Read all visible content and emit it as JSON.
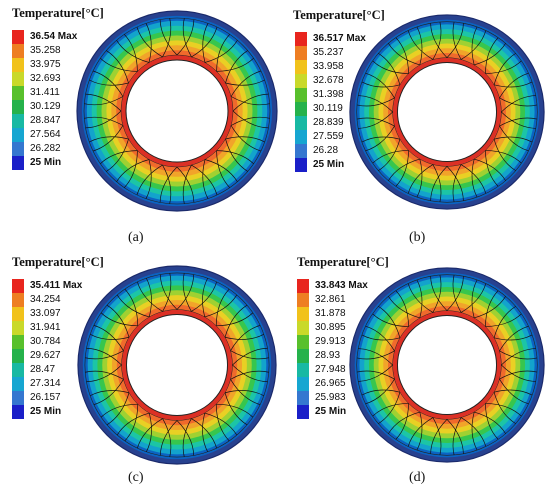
{
  "ring_colors": [
    "#27418f",
    "#0b63c2",
    "#13a3cc",
    "#1cc5a6",
    "#37c64d",
    "#9fd132",
    "#e9d024",
    "#f1a42a",
    "#f06a2c",
    "#dc3025"
  ],
  "panels": [
    {
      "title": "Temperature[°C]",
      "caption": "(a)",
      "legend": [
        "36.54 Max",
        "35.258",
        "33.975",
        "32.693",
        "31.411",
        "30.129",
        "28.847",
        "27.564",
        "26.282",
        "25 Min"
      ]
    },
    {
      "title": "Temperature[°C]",
      "caption": "(b)",
      "legend": [
        "36.517 Max",
        "35.237",
        "33.958",
        "32.678",
        "31.398",
        "30.119",
        "28.839",
        "27.559",
        "26.28",
        "25 Min"
      ]
    },
    {
      "title": "Temperature[°C]",
      "caption": "(c)",
      "legend": [
        "35.411 Max",
        "34.254",
        "33.097",
        "31.941",
        "30.784",
        "29.627",
        "28.47",
        "27.314",
        "26.157",
        "25 Min"
      ]
    },
    {
      "title": "Temperature[°C]",
      "caption": "(d)",
      "legend": [
        "33.843 Max",
        "32.861",
        "31.878",
        "30.895",
        "29.913",
        "28.93",
        "27.948",
        "26.965",
        "25.983",
        "25 Min"
      ]
    }
  ],
  "legend_colors": [
    "#e8251e",
    "#ee7e22",
    "#f1c21b",
    "#c9d92a",
    "#58c02c",
    "#25b24b",
    "#18b9a3",
    "#16a6d1",
    "#3577d0",
    "#1a1fc8"
  ]
}
